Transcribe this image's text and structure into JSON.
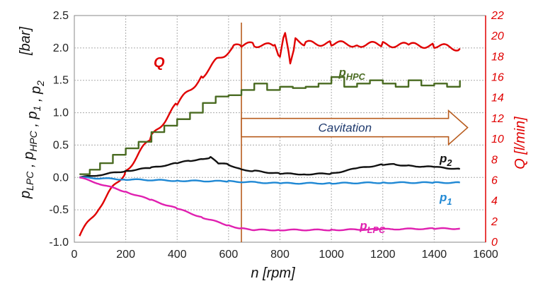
{
  "chart_data": {
    "type": "line",
    "x_label": {
      "main": "n",
      "unit": "[rpm]"
    },
    "x_ticks": [
      0,
      200,
      400,
      600,
      800,
      1000,
      1200,
      1400,
      1600
    ],
    "x_range": [
      0,
      1600
    ],
    "y_left": {
      "label_parts": [
        {
          "t": "p",
          "sub": "LPC"
        },
        {
          "t": " , p",
          "sub": "HPC"
        },
        {
          "t": " , p",
          "sub": "1"
        },
        {
          "t": " , p",
          "sub": "2"
        }
      ],
      "unit": "[bar]",
      "range": [
        -1.0,
        2.5
      ],
      "ticks": [
        "-1.0",
        "-0.5",
        "0.0",
        "0.5",
        "1.0",
        "1.5",
        "2.0",
        "2.5"
      ]
    },
    "y_right": {
      "label_main": "Q",
      "unit": "[l/min]",
      "range": [
        0,
        22
      ],
      "ticks": [
        "0",
        "2",
        "4",
        "6",
        "8",
        "10",
        "12",
        "14",
        "16",
        "18",
        "20",
        "22"
      ],
      "color": "#e00000"
    },
    "grid": true,
    "annotation": {
      "text": "Cavitation",
      "vline_x": 650,
      "arrow_x": [
        650,
        1530
      ],
      "arrow_y": 0.77,
      "color": "#b85c1e"
    },
    "series": [
      {
        "name": "Q",
        "label": {
          "main": "Q",
          "sub": ""
        },
        "axis": "right",
        "color": "#e00000",
        "x": [
          20,
          100,
          200,
          300,
          400,
          500,
          560,
          620,
          650,
          700,
          780,
          800,
          820,
          840,
          860,
          900,
          1000,
          1100,
          1200,
          1300,
          1400,
          1500
        ],
        "y": [
          0.6,
          3.6,
          6.9,
          10.2,
          13.4,
          16.2,
          17.8,
          18.9,
          19.1,
          19.2,
          19.0,
          17.8,
          20.5,
          17.5,
          19.6,
          19.3,
          19.3,
          19.2,
          19.2,
          19.1,
          19.1,
          18.8
        ]
      },
      {
        "name": "p_HPC",
        "label": {
          "main": "p",
          "sub": "HPC"
        },
        "axis": "left",
        "color": "#4a6b22",
        "step": true,
        "x": [
          20,
          60,
          100,
          150,
          200,
          250,
          300,
          350,
          400,
          450,
          500,
          550,
          600,
          650,
          700,
          750,
          800,
          850,
          900,
          950,
          1000,
          1050,
          1100,
          1150,
          1200,
          1250,
          1300,
          1350,
          1400,
          1450,
          1500
        ],
        "y": [
          0.05,
          0.12,
          0.22,
          0.35,
          0.45,
          0.55,
          0.7,
          0.8,
          0.9,
          1.0,
          1.15,
          1.25,
          1.27,
          1.35,
          1.45,
          1.35,
          1.4,
          1.38,
          1.4,
          1.45,
          1.55,
          1.4,
          1.45,
          1.5,
          1.45,
          1.4,
          1.5,
          1.42,
          1.45,
          1.4,
          1.5
        ]
      },
      {
        "name": "p_2",
        "label": {
          "main": "p",
          "sub": "2"
        },
        "axis": "left",
        "color": "#111111",
        "x": [
          20,
          100,
          200,
          300,
          400,
          450,
          500,
          530,
          560,
          600,
          650,
          700,
          800,
          900,
          1000,
          1100,
          1200,
          1250,
          1300,
          1400,
          1500
        ],
        "y": [
          0.0,
          0.04,
          0.1,
          0.15,
          0.22,
          0.26,
          0.28,
          0.31,
          0.22,
          0.2,
          0.12,
          0.1,
          0.06,
          0.05,
          0.06,
          0.14,
          0.2,
          0.2,
          0.18,
          0.16,
          0.13
        ]
      },
      {
        "name": "p_1",
        "label": {
          "main": "p",
          "sub": "1"
        },
        "axis": "left",
        "color": "#1f88d4",
        "x": [
          20,
          200,
          400,
          600,
          800,
          1000,
          1200,
          1400,
          1500
        ],
        "y": [
          0.0,
          -0.03,
          -0.05,
          -0.06,
          -0.09,
          -0.09,
          -0.08,
          -0.08,
          -0.08
        ]
      },
      {
        "name": "p_LPC",
        "label": {
          "main": "p",
          "sub": "LPC"
        },
        "axis": "left",
        "color": "#e020b0",
        "x": [
          20,
          100,
          200,
          300,
          400,
          500,
          600,
          650,
          700,
          800,
          1000,
          1200,
          1400,
          1500
        ],
        "y": [
          0.0,
          -0.1,
          -0.22,
          -0.35,
          -0.48,
          -0.62,
          -0.74,
          -0.79,
          -0.81,
          -0.81,
          -0.81,
          -0.8,
          -0.79,
          -0.79
        ]
      }
    ]
  }
}
